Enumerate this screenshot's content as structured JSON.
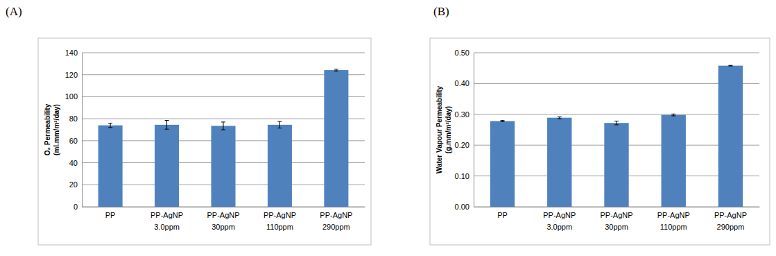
{
  "chart_data": [
    {
      "type": "bar",
      "title": "(A)",
      "ylabel": "O₂ Permeability\n(ml.mm/m²/day)",
      "categories": [
        "PP",
        "PP-AgNP\n3.0ppm",
        "PP-AgNP\n30ppm",
        "PP-AgNP\n110ppm",
        "PP-AgNP\n290ppm"
      ],
      "values": [
        74,
        74.5,
        73.5,
        74.5,
        124.2
      ],
      "errors": [
        2,
        4,
        3.5,
        3,
        0.8
      ],
      "color": "#4f81bd",
      "ylim": [
        0,
        140
      ],
      "yticks": [
        0,
        20,
        40,
        60,
        80,
        100,
        120,
        140
      ],
      "grid": true
    },
    {
      "type": "bar",
      "title": "(B)",
      "ylabel": "Water Vapour Permeability\n(g.mm/m²/day)",
      "categories": [
        "PP",
        "PP-AgNP\n3.0ppm",
        "PP-AgNP\n30ppm",
        "PP-AgNP\n110ppm",
        "PP-AgNP\n290ppm"
      ],
      "values": [
        0.278,
        0.289,
        0.272,
        0.298,
        0.458
      ],
      "errors": [
        0.002,
        0.003,
        0.006,
        0.003,
        0.001
      ],
      "color": "#4f81bd",
      "ylim": [
        0,
        0.5
      ],
      "yticks": [
        {
          "value": 0,
          "label": "0.00"
        },
        {
          "value": 0.1,
          "label": "0.10"
        },
        {
          "value": 0.2,
          "label": "0.20"
        },
        {
          "value": 0.3,
          "label": "0.30"
        },
        {
          "value": 0.4,
          "label": "0.40"
        },
        {
          "value": 0.5,
          "label": "0.50"
        }
      ],
      "grid": true
    }
  ]
}
